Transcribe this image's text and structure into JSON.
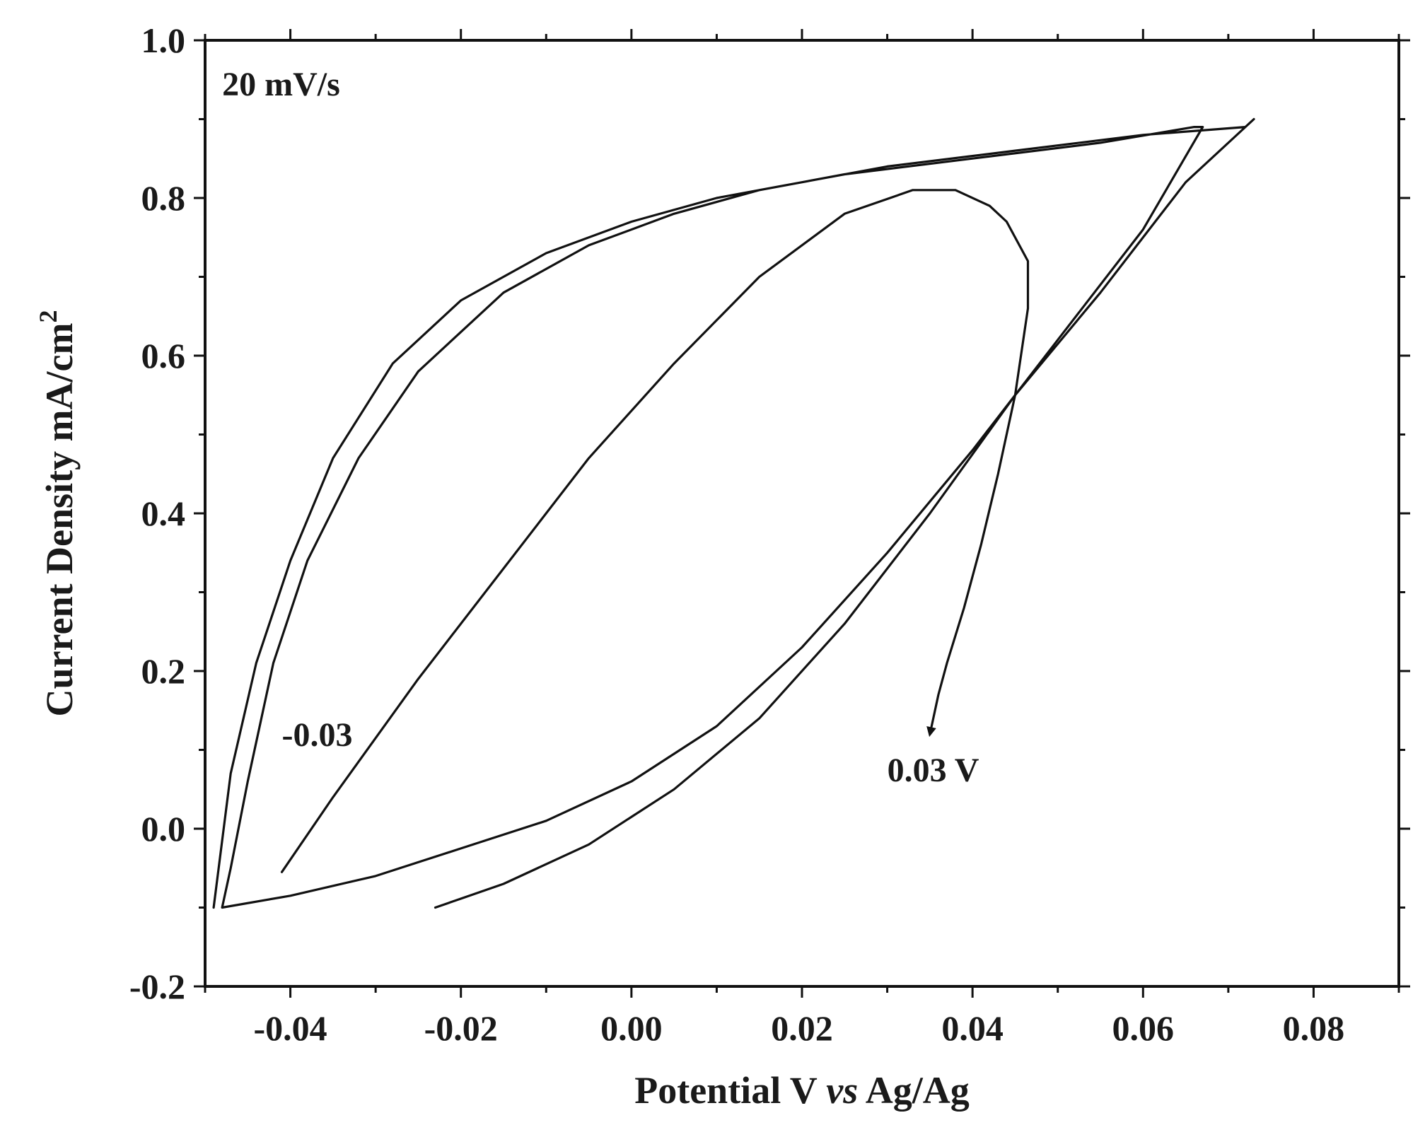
{
  "chart_data": {
    "type": "line",
    "title": "",
    "xlabel": "Potential V vs Ag/Ag",
    "xlabel_parts": {
      "pre": "Potential V ",
      "italic": "vs",
      "post": " Ag/Ag"
    },
    "ylabel": "Current Density mA/cm",
    "ylabel_sup": "2",
    "xlim": [
      -0.05,
      0.09
    ],
    "ylim": [
      -0.2,
      1.0
    ],
    "xticks": [
      -0.04,
      -0.02,
      0.0,
      0.02,
      0.04,
      0.06,
      0.08
    ],
    "xtick_labels": [
      "-0.04",
      "-0.02",
      "0.00",
      "0.02",
      "0.04",
      "0.06",
      "0.08"
    ],
    "yticks": [
      -0.2,
      0.0,
      0.2,
      0.4,
      0.6,
      0.8,
      1.0
    ],
    "ytick_labels": [
      "-0.2",
      "0.0",
      "0.2",
      "0.4",
      "0.6",
      "0.8",
      "1.0"
    ],
    "grid": false,
    "legend": "none",
    "annotations": [
      {
        "text": "20 mV/s",
        "x": -0.048,
        "y": 0.93
      },
      {
        "text": "-0.03",
        "x": -0.041,
        "y": 0.105
      },
      {
        "text": "0.03 V",
        "x": 0.03,
        "y": 0.06
      }
    ],
    "series": [
      {
        "x": [
          -0.023,
          -0.015,
          -0.005,
          0.005,
          0.015,
          0.025,
          0.035,
          0.045,
          0.055,
          0.065,
          0.073,
          0.072,
          0.06,
          0.045,
          0.03,
          0.015,
          0.005,
          -0.005,
          -0.015,
          -0.025,
          -0.032,
          -0.038,
          -0.042,
          -0.045,
          -0.047,
          -0.048,
          -0.04,
          -0.03,
          -0.02,
          -0.01,
          0.0,
          0.01,
          0.02,
          0.03,
          0.04,
          0.05,
          0.06,
          0.067,
          0.066,
          0.055,
          0.04,
          0.025,
          0.01,
          0.0,
          -0.01,
          -0.02,
          -0.028,
          -0.035,
          -0.04,
          -0.044,
          -0.047,
          -0.049
        ],
        "y": [
          -0.1,
          -0.07,
          -0.02,
          0.05,
          0.14,
          0.26,
          0.4,
          0.55,
          0.68,
          0.82,
          0.9,
          0.89,
          0.88,
          0.86,
          0.84,
          0.81,
          0.78,
          0.74,
          0.68,
          0.58,
          0.47,
          0.34,
          0.21,
          0.06,
          -0.05,
          -0.1,
          -0.085,
          -0.06,
          -0.025,
          0.01,
          0.06,
          0.13,
          0.23,
          0.35,
          0.48,
          0.62,
          0.76,
          0.89,
          0.89,
          0.87,
          0.85,
          0.83,
          0.8,
          0.77,
          0.73,
          0.67,
          0.59,
          0.47,
          0.34,
          0.21,
          0.07,
          -0.1
        ]
      },
      {
        "x": [
          -0.041,
          -0.035,
          -0.025,
          -0.015,
          -0.005,
          0.005,
          0.015,
          0.025,
          0.033,
          0.038,
          0.042,
          0.044,
          0.0465,
          0.0465,
          0.045,
          0.043,
          0.041,
          0.039,
          0.037,
          0.036,
          0.035
        ],
        "y": [
          -0.055,
          0.04,
          0.19,
          0.33,
          0.47,
          0.59,
          0.7,
          0.78,
          0.81,
          0.81,
          0.79,
          0.77,
          0.72,
          0.66,
          0.55,
          0.45,
          0.36,
          0.28,
          0.21,
          0.17,
          0.12
        ]
      }
    ],
    "arrow": {
      "x": 0.0345,
      "y": 0.115
    }
  }
}
